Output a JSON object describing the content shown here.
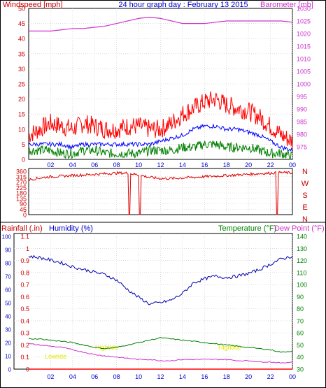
{
  "header": {
    "left_title": "Windspeed [mph]",
    "center_title": "24 hour graph day : February 13 2015",
    "right_title": "Barometer [mb]"
  },
  "mid_header": {
    "rain_label": "Rainfall (.in)",
    "humidity_label": "Humidity (%)",
    "temperature_label": "Temperature (°F)",
    "dewpoint_label": "Dew Point (°F)"
  },
  "annotations": {
    "lowtide": "Lowtide",
    "hightide_1": "Hightide",
    "hightide_2": "Hightide"
  },
  "colors": {
    "wind_gust": "#ff0000",
    "wind_avg": "#0000ff",
    "wind_low": "#008000",
    "barometer": "#cc33cc",
    "direction": "#dd0000",
    "humidity": "#0000aa",
    "temperature": "#008000",
    "dewpoint": "#cc33cc",
    "rain": "#ff0000",
    "tide_text": "#e8e800",
    "grid": "#c8c8c8"
  },
  "chart_data": [
    {
      "type": "line",
      "name": "wind-barometer",
      "title": "24 hour graph day : February 13 2015",
      "ylabel": "Windspeed [mph]",
      "y2label": "Barometer [mb]",
      "x_ticks": [
        "02",
        "04",
        "06",
        "08",
        "10",
        "12",
        "14",
        "16",
        "18",
        "20",
        "22",
        "00"
      ],
      "x": [
        0,
        1,
        2,
        3,
        4,
        5,
        6,
        7,
        8,
        9,
        10,
        11,
        12,
        13,
        14,
        15,
        16,
        17,
        18,
        19,
        20,
        21,
        22,
        23,
        24
      ],
      "ylim": [
        0,
        50
      ],
      "y_ticks": [
        0,
        5,
        10,
        15,
        20,
        25,
        30,
        35,
        40,
        45,
        50
      ],
      "y2lim": [
        970,
        1030
      ],
      "y2_ticks": [
        975,
        980,
        985,
        990,
        995,
        1000,
        1005,
        1010,
        1015,
        1020,
        1025,
        1030
      ],
      "series": [
        {
          "name": "gust",
          "axis": "y",
          "values": [
            8,
            10,
            12,
            11,
            10,
            12,
            11,
            10,
            10,
            11,
            11,
            10,
            10,
            12,
            15,
            17,
            19,
            20,
            18,
            17,
            16,
            14,
            11,
            8,
            6
          ]
        },
        {
          "name": "average",
          "axis": "y",
          "values": [
            5,
            5,
            5,
            5,
            4,
            5,
            5,
            5,
            5,
            5,
            5,
            5,
            6,
            7,
            8,
            10,
            11,
            11,
            10,
            10,
            9,
            8,
            6,
            4,
            3
          ]
        },
        {
          "name": "low",
          "axis": "y",
          "values": [
            3,
            3,
            3,
            2,
            2,
            3,
            3,
            2,
            2,
            2,
            2,
            3,
            3,
            3,
            4,
            4,
            5,
            5,
            4,
            4,
            4,
            3,
            2,
            2,
            1
          ]
        },
        {
          "name": "barometer",
          "axis": "y2",
          "values": [
            1021,
            1021,
            1021,
            1021.5,
            1022,
            1022,
            1022.5,
            1023,
            1024,
            1025,
            1026,
            1026.5,
            1026,
            1025,
            1024,
            1024,
            1024,
            1024.5,
            1025,
            1025,
            1025,
            1025,
            1025,
            1025,
            1024.5
          ]
        }
      ]
    },
    {
      "type": "line",
      "name": "wind-direction",
      "y_ticks": [
        0,
        45,
        90,
        135,
        180,
        225,
        270,
        315,
        360
      ],
      "ylim": [
        0,
        360
      ],
      "compass": [
        "N",
        "W",
        "S",
        "E",
        "N"
      ],
      "x": [
        0,
        1,
        2,
        3,
        4,
        5,
        6,
        7,
        8,
        9,
        10,
        11,
        12,
        13,
        14,
        15,
        16,
        17,
        18,
        19,
        20,
        21,
        22,
        23,
        24
      ],
      "series": [
        {
          "name": "direction",
          "values": [
            290,
            305,
            315,
            320,
            325,
            330,
            335,
            340,
            345,
            345,
            330,
            310,
            300,
            300,
            305,
            310,
            315,
            320,
            325,
            330,
            335,
            340,
            345,
            350,
            345
          ]
        }
      ],
      "dips": [
        {
          "hour": 9.2,
          "value": 0
        },
        {
          "hour": 10.1,
          "value": 0
        },
        {
          "hour": 22.6,
          "value": 0
        }
      ]
    },
    {
      "type": "line",
      "name": "temp-humidity-rain",
      "x_ticks": [
        "02",
        "04",
        "06",
        "08",
        "10",
        "12",
        "14",
        "16",
        "18",
        "20",
        "22",
        "00"
      ],
      "x": [
        0,
        1,
        2,
        3,
        4,
        5,
        6,
        7,
        8,
        9,
        10,
        11,
        12,
        13,
        14,
        15,
        16,
        17,
        18,
        19,
        20,
        21,
        22,
        23,
        24
      ],
      "humidity_ticks": [
        0,
        10,
        20,
        30,
        40,
        50,
        60,
        70,
        80,
        90,
        100
      ],
      "humidity_lim": [
        0,
        100
      ],
      "rain_ticks": [
        0,
        0.1,
        0.2,
        0.3,
        0.4,
        0.5,
        0.6,
        0.7,
        0.8,
        0.9,
        1,
        1.1
      ],
      "rain_lim": [
        0,
        1.1
      ],
      "temp_ticks": [
        30,
        40,
        50,
        60,
        70,
        80,
        90,
        100,
        110,
        120,
        130,
        140
      ],
      "temp_lim": [
        30,
        140
      ],
      "series": [
        {
          "name": "humidity",
          "axis": "humidity",
          "values": [
            85,
            84,
            82,
            80,
            77,
            75,
            73,
            71,
            67,
            60,
            54,
            49,
            50,
            52,
            57,
            65,
            68,
            70,
            69,
            70,
            72,
            75,
            79,
            83,
            85
          ]
        },
        {
          "name": "temperature",
          "axis": "temp",
          "values": [
            55,
            55,
            54,
            53,
            52,
            50,
            48,
            47,
            48,
            50,
            52,
            54,
            56,
            55,
            54,
            53,
            52,
            51,
            50,
            49,
            48,
            47,
            46,
            44,
            45
          ]
        },
        {
          "name": "dewpoint",
          "axis": "temp",
          "values": [
            51,
            50,
            49,
            48,
            46,
            44,
            42,
            41,
            40,
            39,
            38,
            38,
            37,
            37,
            38,
            38,
            38,
            38,
            38,
            37,
            37,
            36,
            36,
            35,
            36
          ]
        },
        {
          "name": "rainfall",
          "axis": "rain",
          "values": [
            0,
            0,
            0,
            0,
            0,
            0,
            0,
            0,
            0,
            0,
            0,
            0,
            0,
            0,
            0,
            0,
            0,
            0,
            0,
            0,
            0,
            0,
            0,
            0,
            0
          ]
        }
      ]
    }
  ]
}
